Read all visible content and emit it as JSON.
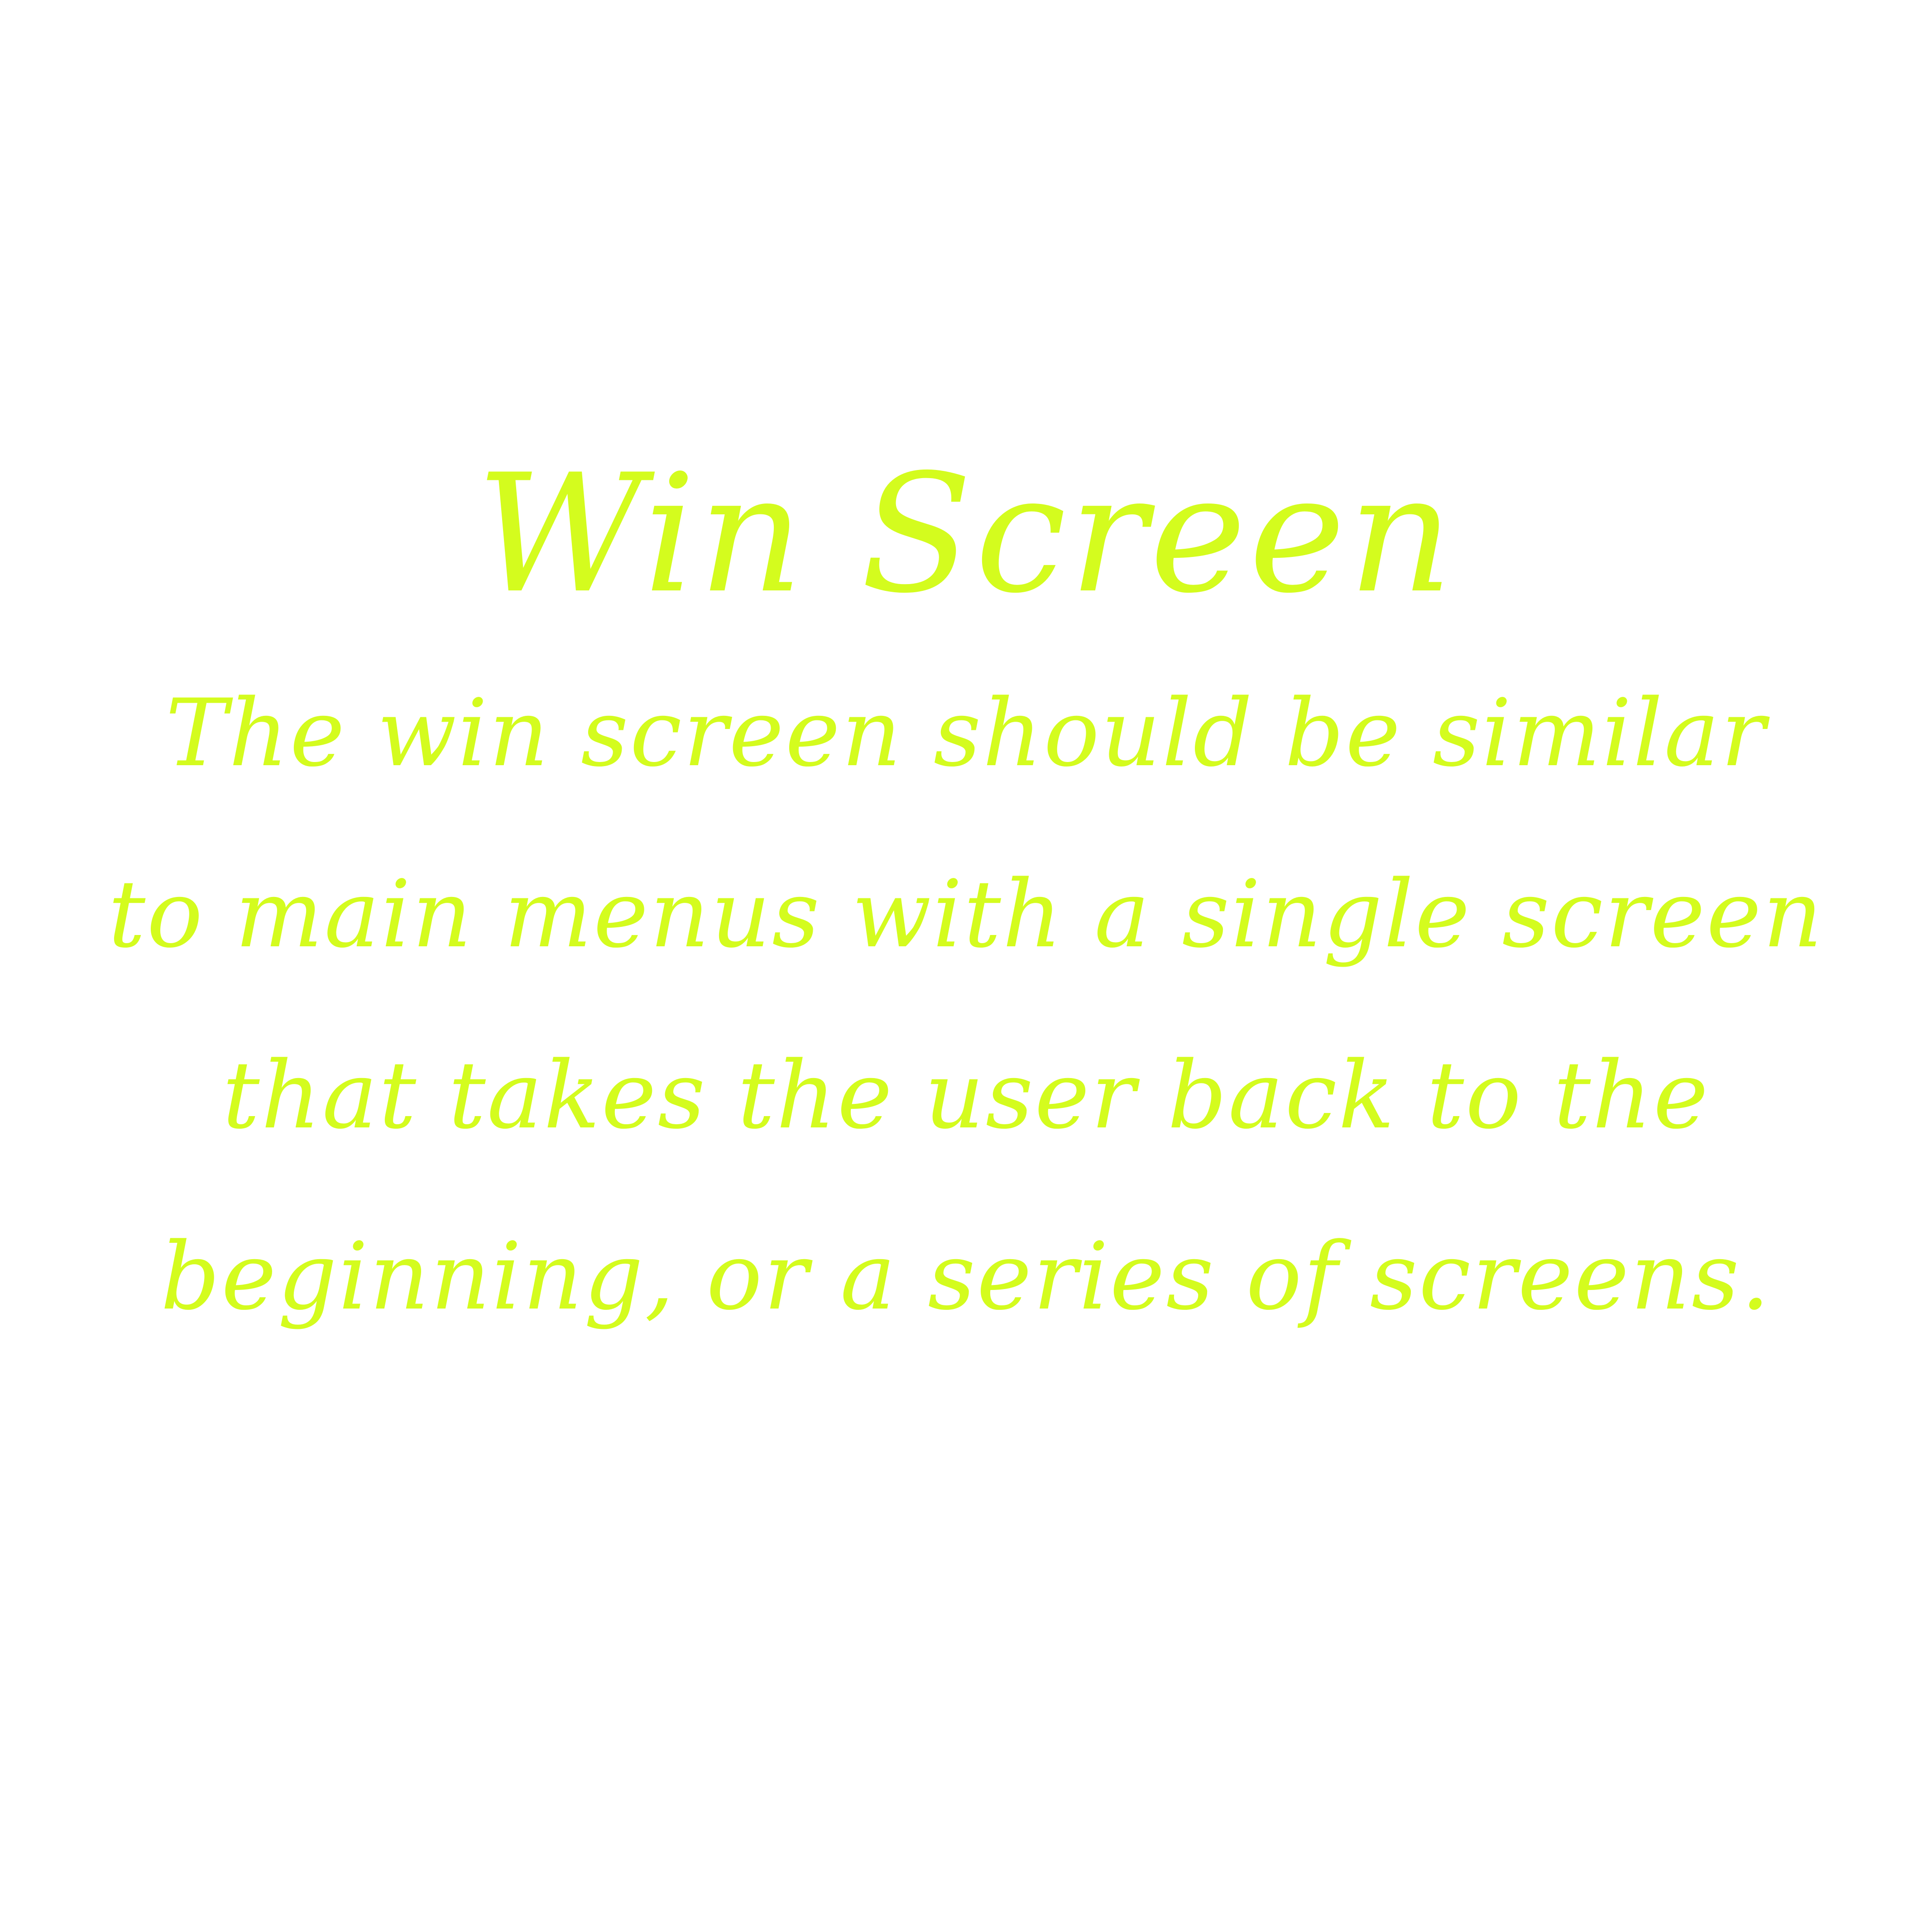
{
  "screen": {
    "title": "Win Screen",
    "lines": [
      "The win screen should be similar",
      "to main menus with a single screen",
      "that takes the user back to the",
      "beginning, or a series of screens."
    ],
    "text_color": "#d4fc1e",
    "background_color": "#ffffff"
  }
}
